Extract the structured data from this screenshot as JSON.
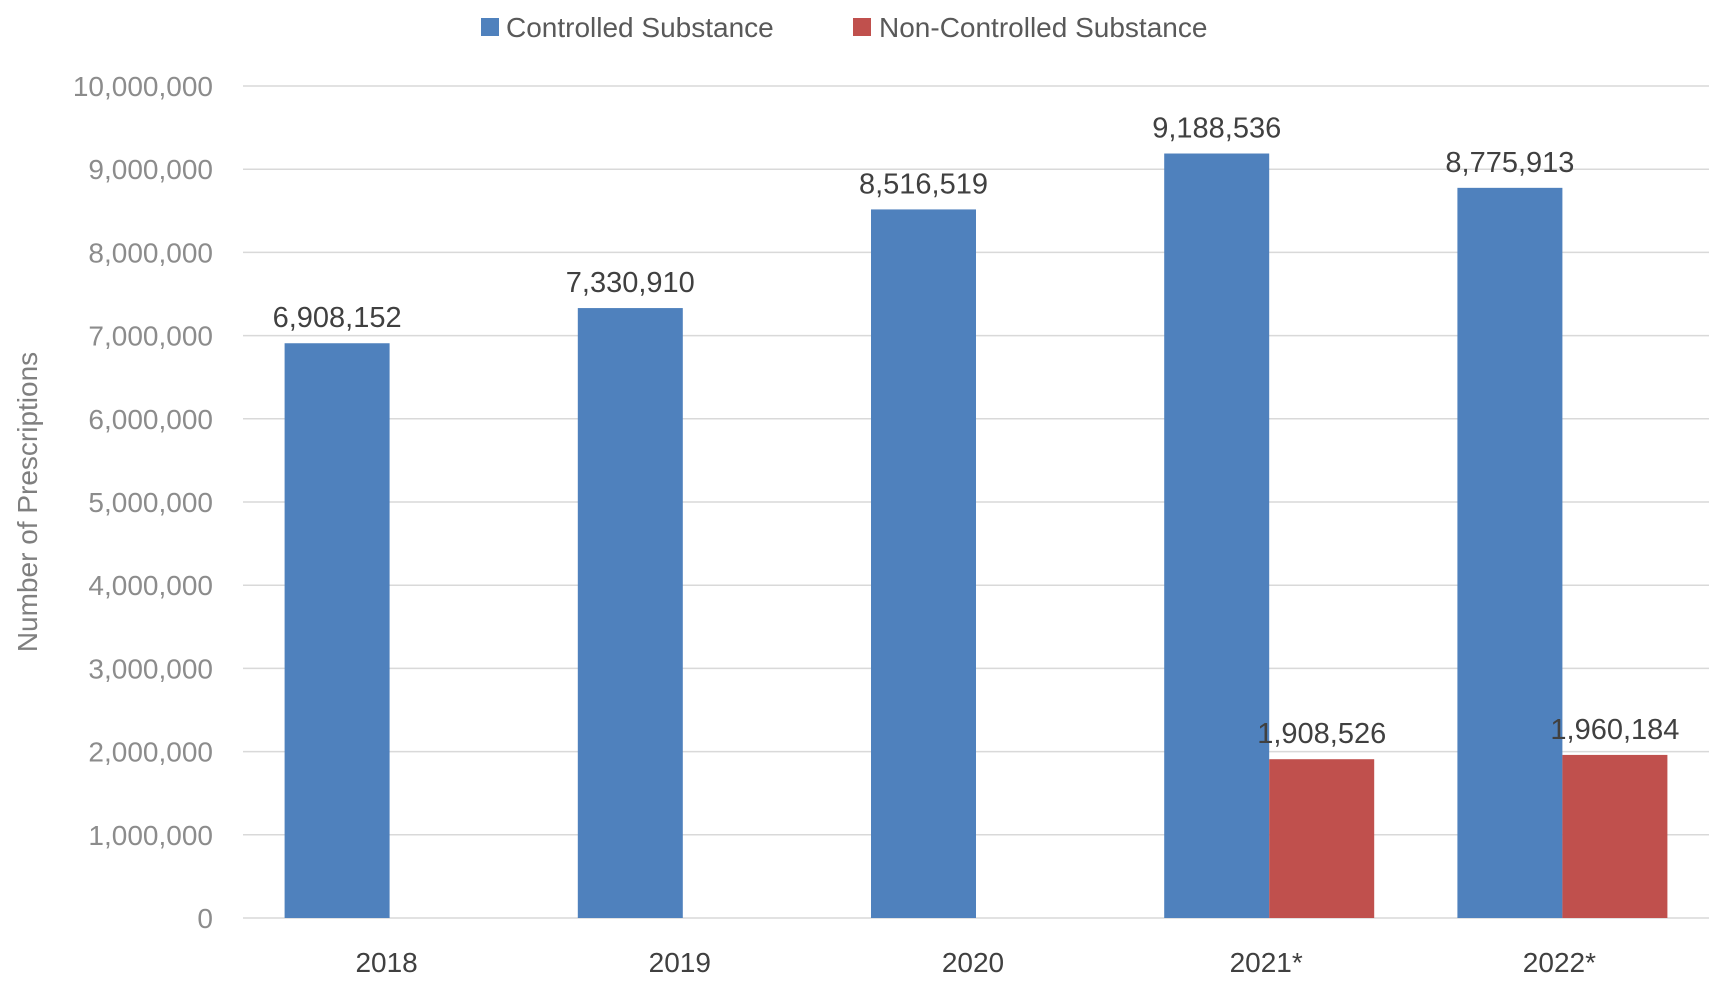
{
  "chart_data": {
    "type": "bar",
    "categories": [
      "2018",
      "2019",
      "2020",
      "2021*",
      "2022*"
    ],
    "series": [
      {
        "name": "Controlled Substance",
        "color": "#4f81bd",
        "values": [
          6908152,
          7330910,
          8516519,
          9188536,
          8775913
        ],
        "labels": [
          "6,908,152",
          "7,330,910",
          "8,516,519",
          "9,188,536",
          "8,775,913"
        ]
      },
      {
        "name": "Non-Controlled Substance",
        "color": "#c0504d",
        "values": [
          null,
          null,
          null,
          1908526,
          1960184
        ],
        "labels": [
          "",
          "",
          "",
          "1,908,526",
          "1,960,184"
        ]
      }
    ],
    "ylabel": "Number of Prescriptions",
    "xlabel": "",
    "ylim": [
      0,
      10000000
    ],
    "yticks": [
      0,
      1000000,
      2000000,
      3000000,
      4000000,
      5000000,
      6000000,
      7000000,
      8000000,
      9000000,
      10000000
    ],
    "ytick_labels": [
      "0",
      "1,000,000",
      "2,000,000",
      "3,000,000",
      "4,000,000",
      "5,000,000",
      "6,000,000",
      "7,000,000",
      "8,000,000",
      "9,000,000",
      "10,000,000"
    ],
    "grid": true,
    "legend_position": "top-center"
  }
}
